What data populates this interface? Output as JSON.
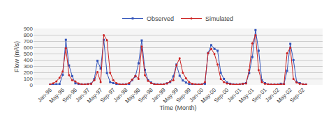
{
  "chart_data": {
    "type": "line",
    "xlabel": "Time (Month)",
    "ylabel": "Flow (m³/s)",
    "categories": [
      "Jan-96",
      null,
      null,
      null,
      "May-96",
      null,
      null,
      null,
      "Sep-96",
      null,
      null,
      null,
      "Jan-97",
      null,
      null,
      null,
      "May-97",
      null,
      null,
      null,
      "Sep-97",
      null,
      null,
      null,
      "Jan-98",
      null,
      null,
      null,
      "May-98",
      null,
      null,
      null,
      "Sep-98",
      null,
      null,
      null,
      "Jan-99",
      null,
      null,
      null,
      "May-99",
      null,
      null,
      null,
      "Sep-99",
      null,
      null,
      null,
      "Jan-00",
      null,
      null,
      null,
      "May-00",
      null,
      null,
      null,
      "Sep-00",
      null,
      null,
      null,
      "Jan-01",
      null,
      null,
      null,
      "May-01",
      null,
      null,
      null,
      "Sep-01",
      null,
      null,
      null,
      "Jan-02",
      null,
      null,
      null,
      "May-02",
      null,
      null,
      null,
      "Sep-02",
      null
    ],
    "series": [
      {
        "name": "Observed",
        "color": "#3355bb",
        "marker": "square",
        "line_style": "solid",
        "values": [
          5,
          8,
          10,
          12,
          160,
          720,
          310,
          140,
          25,
          12,
          8,
          6,
          12,
          20,
          95,
          385,
          260,
          720,
          190,
          45,
          28,
          10,
          6,
          7,
          8,
          12,
          75,
          135,
          345,
          710,
          240,
          75,
          38,
          12,
          8,
          6,
          8,
          25,
          45,
          135,
          325,
          145,
          70,
          38,
          12,
          8,
          6,
          5,
          8,
          18,
          510,
          635,
          575,
          545,
          195,
          95,
          38,
          18,
          8,
          6,
          8,
          18,
          28,
          190,
          445,
          875,
          545,
          75,
          28,
          8,
          5,
          5,
          6,
          18,
          12,
          225,
          655,
          395,
          48,
          28,
          8,
          5
        ]
      },
      {
        "name": "Simulated",
        "color": "#cc2222",
        "marker": "circle",
        "line_style": "solid",
        "values": [
          6,
          25,
          55,
          115,
          215,
          585,
          155,
          75,
          55,
          22,
          8,
          6,
          12,
          18,
          75,
          205,
          45,
          795,
          715,
          195,
          75,
          28,
          8,
          6,
          8,
          28,
          85,
          145,
          95,
          615,
          155,
          65,
          28,
          8,
          6,
          5,
          8,
          22,
          55,
          75,
          315,
          425,
          195,
          105,
          45,
          18,
          8,
          6,
          8,
          45,
          505,
          575,
          495,
          325,
          95,
          45,
          22,
          12,
          6,
          5,
          8,
          18,
          22,
          235,
          665,
          795,
          235,
          45,
          18,
          8,
          5,
          5,
          6,
          8,
          12,
          505,
          595,
          95,
          38,
          18,
          8,
          5
        ]
      }
    ],
    "ylim": [
      0,
      900
    ],
    "yticks": [
      0,
      100,
      200,
      300,
      400,
      500,
      600,
      700,
      800,
      900
    ],
    "grid": true,
    "legend": "top"
  }
}
